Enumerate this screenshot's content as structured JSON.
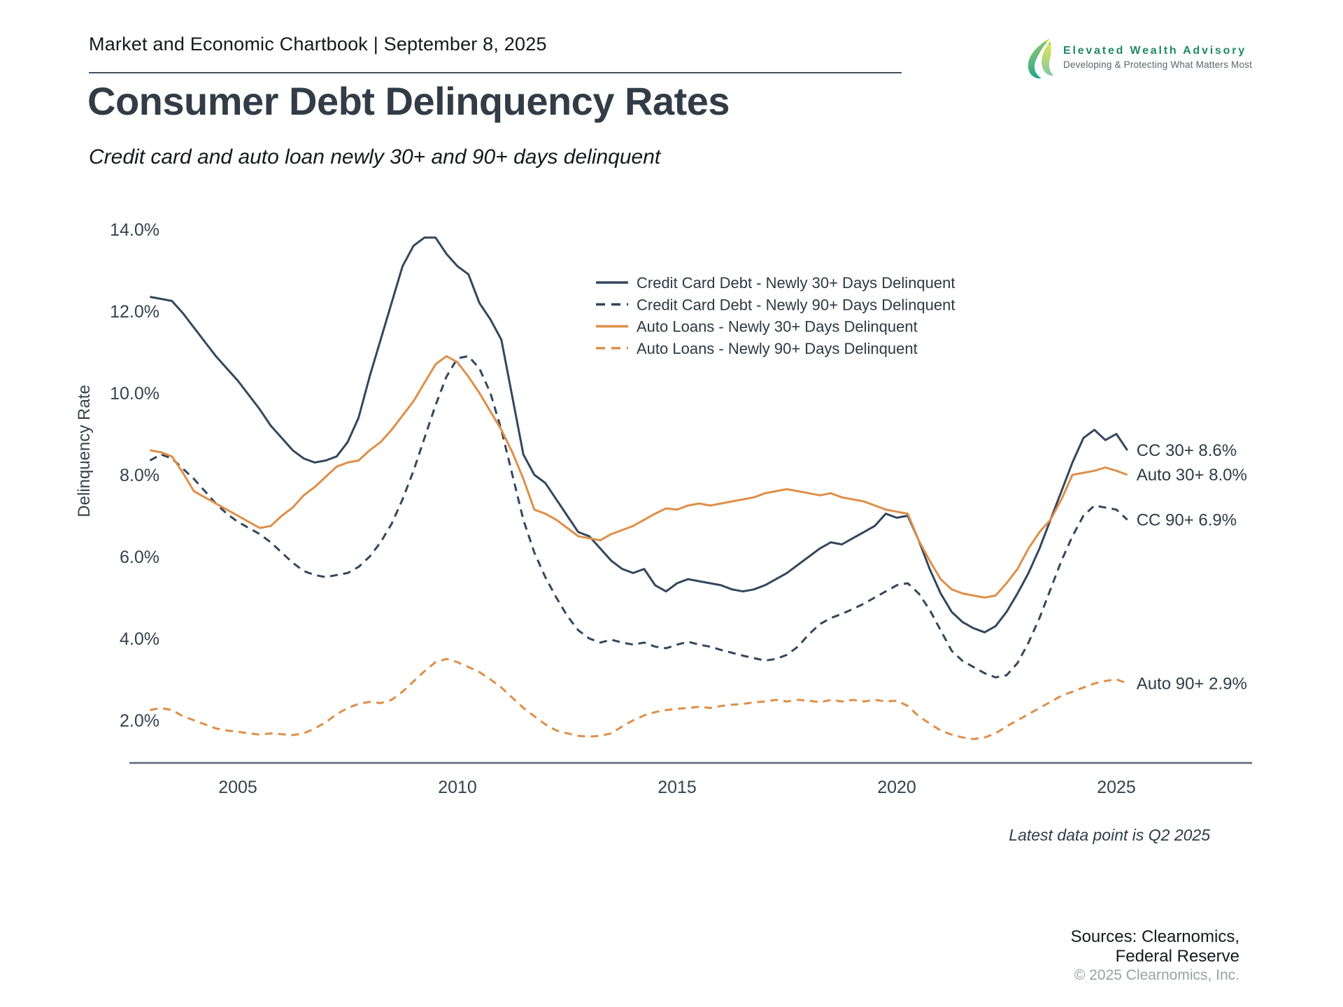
{
  "page": {
    "header": {
      "title": "Market and Economic Chartbook | September 8, 2025"
    },
    "logo": {
      "name": "Elevated Wealth Advisory",
      "tagline": "Developing & Protecting What Matters Most",
      "name_color": "#1e8a63"
    },
    "title": "Consumer Debt Delinquency Rates",
    "subtitle": "Credit card and auto loan newly 30+ and 90+ days delinquent",
    "footnote": "Latest data point is Q2 2025",
    "sources_line1": "Sources: Clearnomics,",
    "sources_line2": "Federal Reserve",
    "copyright": "© 2025 Clearnomics, Inc."
  },
  "chart_data": {
    "type": "line",
    "title": "Consumer Debt Delinquency Rates",
    "xlabel": "",
    "ylabel": "Delinquency Rate",
    "xlim": [
      2003.0,
      2025.25
    ],
    "ylim": [
      0.8,
      15.2
    ],
    "grid": false,
    "legend_position": "upper-center-right",
    "x_start": 2003.0,
    "x_step": 0.25,
    "x_unit": "year (quarterly)",
    "x_ticks": [
      2005,
      2010,
      2015,
      2020,
      2025
    ],
    "y_ticks": [
      14,
      12,
      10,
      8,
      6,
      4,
      2
    ],
    "y_tick_suffix": "%",
    "axis_color": "#5b6770",
    "series": [
      {
        "id": "cc30",
        "label": "Credit Card Debt - Newly 30+ Days Delinquent",
        "color": "#33475b",
        "dash": "solid",
        "end_label": "CC 30+ 8.6%",
        "end_value": 8.6,
        "values": [
          12.35,
          12.3,
          12.25,
          11.95,
          11.6,
          11.25,
          10.9,
          10.6,
          10.3,
          9.95,
          9.6,
          9.2,
          8.9,
          8.6,
          8.4,
          8.3,
          8.35,
          8.45,
          8.8,
          9.4,
          10.4,
          11.3,
          12.2,
          13.1,
          13.6,
          13.8,
          13.8,
          13.4,
          13.1,
          12.9,
          12.2,
          11.8,
          11.3,
          9.9,
          8.5,
          8.0,
          7.8,
          7.4,
          7.0,
          6.6,
          6.5,
          6.2,
          5.9,
          5.7,
          5.6,
          5.7,
          5.3,
          5.15,
          5.35,
          5.45,
          5.4,
          5.35,
          5.3,
          5.2,
          5.15,
          5.2,
          5.3,
          5.45,
          5.6,
          5.8,
          6.0,
          6.2,
          6.35,
          6.3,
          6.45,
          6.6,
          6.75,
          7.05,
          6.95,
          7.0,
          6.4,
          5.7,
          5.1,
          4.65,
          4.4,
          4.25,
          4.15,
          4.3,
          4.65,
          5.1,
          5.6,
          6.2,
          6.9,
          7.6,
          8.3,
          8.9,
          9.1,
          8.85,
          9.0,
          8.6
        ]
      },
      {
        "id": "cc90",
        "label": "Credit Card Debt - Newly 90+ Days Delinquent",
        "color": "#33475b",
        "dash": "dashed",
        "end_label": "CC 90+ 6.9%",
        "end_value": 6.9,
        "values": [
          8.35,
          8.5,
          8.4,
          8.15,
          7.9,
          7.6,
          7.3,
          7.05,
          6.85,
          6.7,
          6.55,
          6.35,
          6.1,
          5.85,
          5.65,
          5.55,
          5.5,
          5.55,
          5.6,
          5.75,
          6.0,
          6.35,
          6.8,
          7.4,
          8.1,
          8.9,
          9.7,
          10.4,
          10.85,
          10.9,
          10.6,
          10.0,
          9.1,
          8.0,
          6.9,
          6.1,
          5.5,
          5.0,
          4.55,
          4.2,
          4.0,
          3.9,
          3.97,
          3.9,
          3.85,
          3.9,
          3.8,
          3.76,
          3.85,
          3.92,
          3.85,
          3.8,
          3.72,
          3.65,
          3.58,
          3.52,
          3.46,
          3.5,
          3.6,
          3.8,
          4.1,
          4.35,
          4.5,
          4.6,
          4.72,
          4.85,
          5.0,
          5.15,
          5.3,
          5.35,
          5.1,
          4.7,
          4.2,
          3.7,
          3.45,
          3.3,
          3.15,
          3.05,
          3.1,
          3.4,
          3.9,
          4.5,
          5.2,
          5.9,
          6.5,
          7.0,
          7.25,
          7.2,
          7.15,
          6.9
        ]
      },
      {
        "id": "auto30",
        "label": "Auto Loans - Newly 30+ Days Delinquent",
        "color": "#de8f49",
        "dash": "solid",
        "end_label": "Auto 30+ 8.0%",
        "end_value": 8.0,
        "values": [
          8.6,
          8.55,
          8.45,
          8.05,
          7.6,
          7.45,
          7.3,
          7.15,
          7.0,
          6.85,
          6.7,
          6.75,
          7.0,
          7.2,
          7.5,
          7.7,
          7.95,
          8.2,
          8.3,
          8.35,
          8.6,
          8.8,
          9.1,
          9.45,
          9.8,
          10.25,
          10.7,
          10.9,
          10.75,
          10.4,
          10.0,
          9.55,
          9.1,
          8.55,
          7.9,
          7.15,
          7.05,
          6.9,
          6.7,
          6.5,
          6.45,
          6.4,
          6.55,
          6.65,
          6.75,
          6.9,
          7.05,
          7.18,
          7.15,
          7.25,
          7.3,
          7.25,
          7.3,
          7.35,
          7.4,
          7.45,
          7.55,
          7.6,
          7.65,
          7.6,
          7.55,
          7.5,
          7.55,
          7.45,
          7.4,
          7.35,
          7.25,
          7.15,
          7.1,
          7.05,
          6.4,
          5.9,
          5.45,
          5.2,
          5.1,
          5.05,
          5.0,
          5.05,
          5.35,
          5.7,
          6.2,
          6.6,
          6.9,
          7.4,
          8.0,
          8.05,
          8.1,
          8.18,
          8.1,
          8.0
        ]
      },
      {
        "id": "auto90",
        "label": "Auto Loans - Newly 90+ Days Delinquent",
        "color": "#de8f49",
        "dash": "dashed",
        "end_label": "Auto 90+ 2.9%",
        "end_value": 2.9,
        "values": [
          2.25,
          2.3,
          2.25,
          2.1,
          2.0,
          1.9,
          1.8,
          1.75,
          1.72,
          1.68,
          1.65,
          1.68,
          1.66,
          1.64,
          1.68,
          1.8,
          1.95,
          2.15,
          2.3,
          2.4,
          2.45,
          2.42,
          2.5,
          2.7,
          2.95,
          3.2,
          3.42,
          3.5,
          3.42,
          3.3,
          3.18,
          3.0,
          2.8,
          2.55,
          2.3,
          2.1,
          1.9,
          1.75,
          1.68,
          1.62,
          1.6,
          1.62,
          1.68,
          1.85,
          2.0,
          2.12,
          2.2,
          2.25,
          2.28,
          2.3,
          2.33,
          2.3,
          2.35,
          2.38,
          2.4,
          2.44,
          2.46,
          2.5,
          2.46,
          2.5,
          2.48,
          2.44,
          2.5,
          2.46,
          2.5,
          2.46,
          2.5,
          2.46,
          2.48,
          2.35,
          2.1,
          1.92,
          1.75,
          1.65,
          1.58,
          1.54,
          1.58,
          1.68,
          1.85,
          2.0,
          2.15,
          2.3,
          2.45,
          2.6,
          2.7,
          2.8,
          2.9,
          2.96,
          3.0,
          2.9
        ]
      }
    ]
  }
}
